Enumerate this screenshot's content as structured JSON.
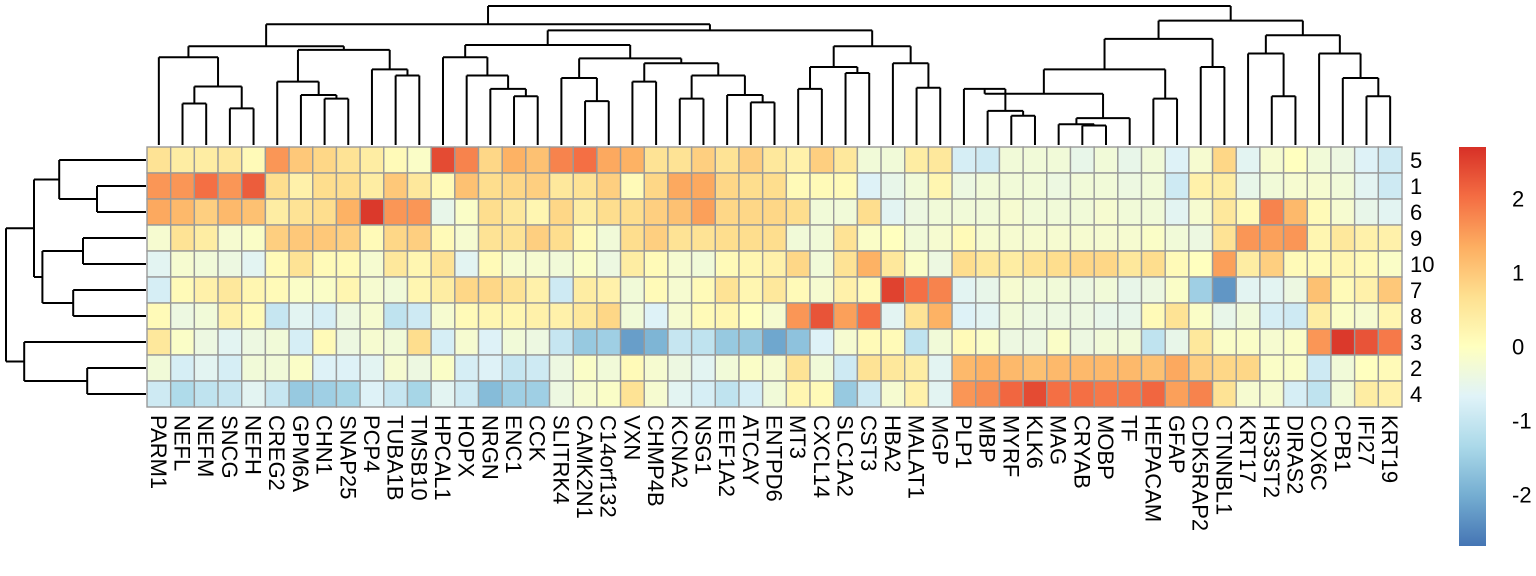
{
  "chart_data": {
    "type": "heatmap",
    "title": "",
    "xlabel": "",
    "ylabel": "",
    "rows": [
      "5",
      "1",
      "6",
      "9",
      "10",
      "7",
      "8",
      "3",
      "2",
      "4"
    ],
    "columns": [
      "PARM1",
      "NEFL",
      "NEFM",
      "SNCG",
      "NEFH",
      "CREG2",
      "GPM6A",
      "CHN1",
      "SNAP25",
      "PCP4",
      "TUBA1B",
      "TMSB10",
      "HPCAL1",
      "HOPX",
      "NRGN",
      "ENC1",
      "CCK",
      "SLITRK4",
      "CAMK2N1",
      "C14orf132",
      "VXN",
      "CHMP4B",
      "KCNA2",
      "NSG1",
      "EEF1A2",
      "ATCAY",
      "ENTPD6",
      "MT3",
      "CXCL14",
      "SLC1A2",
      "CST3",
      "HBA2",
      "MALAT1",
      "MGP",
      "PLP1",
      "MBP",
      "MYRF",
      "KLK6",
      "MAG",
      "CRYAB",
      "MOBP",
      "TF",
      "HEPACAM",
      "GFAP",
      "CDK5RAP2",
      "CTNNBL1",
      "KRT17",
      "HS3ST2",
      "DIRAS2",
      "COX6C",
      "CPB1",
      "IFI27",
      "KRT19"
    ],
    "values": [
      [
        0.6,
        0.4,
        0.4,
        0.5,
        0.1,
        1.6,
        1.0,
        0.8,
        0.6,
        0.4,
        0.1,
        -0.1,
        2.4,
        1.8,
        0.8,
        1.3,
        1.1,
        1.8,
        2.0,
        1.4,
        1.3,
        0.6,
        0.6,
        0.9,
        0.6,
        0.9,
        0.5,
        0.3,
        0.9,
        0.5,
        -0.3,
        -0.3,
        0.4,
        0.5,
        -0.8,
        -0.9,
        -0.3,
        -0.3,
        -0.3,
        -0.5,
        -0.3,
        -0.5,
        -0.3,
        -0.7,
        -0.2,
        0.8,
        -0.6,
        -0.2,
        0.0,
        -0.3,
        -0.4,
        -0.7,
        -0.9
      ],
      [
        1.6,
        1.6,
        2.0,
        1.6,
        2.2,
        0.7,
        0.3,
        0.7,
        0.7,
        0.4,
        1.0,
        0.5,
        0.1,
        1.1,
        0.7,
        0.8,
        0.9,
        0.5,
        0.6,
        0.9,
        0.1,
        0.8,
        1.4,
        1.4,
        0.8,
        0.7,
        0.7,
        0.1,
        0.1,
        0.1,
        -0.7,
        -0.5,
        -0.3,
        0.2,
        -0.4,
        -0.3,
        -0.3,
        -0.3,
        -0.4,
        -0.3,
        -0.3,
        -0.4,
        -0.3,
        -0.9,
        0.3,
        0.4,
        -0.5,
        -0.3,
        -0.2,
        -0.2,
        -0.3,
        -0.6,
        -0.9
      ],
      [
        1.4,
        1.2,
        0.9,
        1.2,
        1.1,
        0.4,
        0.6,
        0.7,
        1.3,
        2.6,
        1.6,
        1.6,
        -0.5,
        -0.1,
        0.7,
        0.5,
        0.2,
        0.8,
        0.4,
        0.7,
        0.7,
        0.9,
        1.1,
        1.5,
        0.8,
        0.8,
        0.8,
        0.7,
        -0.3,
        -0.3,
        0.7,
        -0.6,
        -0.4,
        -0.3,
        -0.3,
        -0.3,
        -0.2,
        -0.3,
        -0.3,
        -0.3,
        -0.2,
        -0.3,
        -0.3,
        -0.6,
        -0.2,
        0.5,
        0.1,
        1.8,
        1.2,
        0.1,
        -0.2,
        -0.5,
        -0.6
      ],
      [
        -0.2,
        0.6,
        0.4,
        -0.2,
        -0.1,
        0.9,
        1.0,
        1.0,
        0.9,
        0.1,
        0.8,
        0.9,
        0.1,
        -0.2,
        0.6,
        0.6,
        0.9,
        0.7,
        0.1,
        -0.3,
        0.7,
        0.9,
        0.6,
        0.6,
        0.7,
        0.7,
        0.7,
        -0.3,
        -0.3,
        0.6,
        -0.1,
        0.0,
        -0.3,
        -0.2,
        0.1,
        -0.2,
        -0.2,
        -0.2,
        -0.2,
        -0.2,
        -0.2,
        -0.2,
        -0.1,
        -0.3,
        -0.4,
        0.6,
        1.6,
        1.5,
        1.6,
        0.2,
        0.5,
        0.3,
        0.3
      ],
      [
        -0.6,
        -0.2,
        -0.3,
        -0.4,
        -0.6,
        0.1,
        0.6,
        0.1,
        0.1,
        -0.2,
        0.5,
        0.2,
        0.6,
        -0.6,
        0.1,
        -0.2,
        -0.2,
        -0.3,
        -0.1,
        -0.4,
        0.4,
        0.1,
        -0.2,
        -0.3,
        0.1,
        0.2,
        0.3,
        0.8,
        -0.3,
        0.6,
        1.3,
        0.5,
        -0.1,
        -0.4,
        0.7,
        0.5,
        0.4,
        0.6,
        0.7,
        0.8,
        0.8,
        0.5,
        0.7,
        0.1,
        0.0,
        1.5,
        0.4,
        0.9,
        0.1,
        0.1,
        0.2,
        0.1,
        -0.1
      ],
      [
        -0.8,
        0.1,
        0.3,
        0.5,
        0.2,
        0.1,
        -0.1,
        -0.1,
        0.2,
        -0.2,
        -0.3,
        0.2,
        0.4,
        0.8,
        0.8,
        0.6,
        0.3,
        -0.9,
        0.4,
        0.3,
        -0.3,
        0.1,
        -0.2,
        0.1,
        0.6,
        0.2,
        0.5,
        0.1,
        -0.2,
        0.3,
        0.1,
        2.5,
        2.0,
        1.8,
        -0.6,
        -0.5,
        -0.2,
        -0.3,
        -0.3,
        -0.4,
        -0.3,
        -0.5,
        -0.4,
        -0.1,
        -1.5,
        -2.3,
        -0.6,
        -0.6,
        -0.4,
        1.1,
        0.1,
        0.3,
        1.0
      ],
      [
        0.1,
        -0.4,
        -0.3,
        0.3,
        0.1,
        -1.0,
        -0.6,
        -0.8,
        -0.4,
        -0.2,
        -1.1,
        -0.9,
        -0.2,
        0.1,
        0.2,
        0.2,
        0.3,
        0.3,
        0.5,
        0.8,
        -0.3,
        -0.7,
        -0.2,
        0.1,
        0.2,
        0.0,
        -0.2,
        1.6,
        2.3,
        1.5,
        2.0,
        -0.6,
        0.6,
        1.3,
        -0.7,
        -0.6,
        -0.3,
        -0.4,
        -0.4,
        -0.4,
        -0.5,
        -0.5,
        0.1,
        0.6,
        -0.1,
        -0.5,
        -0.3,
        -0.8,
        -0.9,
        0.4,
        -0.1,
        -0.2,
        0.2
      ],
      [
        0.5,
        -0.1,
        -0.4,
        -0.6,
        -0.4,
        -0.3,
        -0.8,
        0.1,
        -0.4,
        -0.2,
        -0.3,
        0.7,
        -0.8,
        -0.2,
        -0.7,
        -0.3,
        -0.4,
        -1.0,
        -1.6,
        -1.5,
        -2.2,
        -1.9,
        -1.0,
        -1.1,
        -1.6,
        -1.6,
        -2.1,
        -1.7,
        -0.7,
        -0.2,
        0.1,
        0.1,
        -1.1,
        -0.3,
        0.1,
        -0.1,
        -0.4,
        -0.4,
        -0.1,
        -0.4,
        -0.3,
        -0.3,
        -1.1,
        -0.5,
        0.5,
        -0.1,
        -0.1,
        -0.2,
        -0.1,
        1.6,
        2.6,
        2.3,
        1.9
      ],
      [
        -0.3,
        -0.8,
        -0.6,
        -0.8,
        -0.3,
        -0.3,
        -0.1,
        -0.7,
        -0.7,
        -0.6,
        -0.2,
        -0.4,
        -0.1,
        -0.8,
        -0.7,
        -1.0,
        -0.9,
        -0.4,
        -0.1,
        -0.3,
        0.1,
        -0.2,
        -0.4,
        -0.6,
        -0.3,
        -0.1,
        -0.2,
        0.6,
        -0.3,
        -0.9,
        0.6,
        0.5,
        0.4,
        -0.6,
        1.2,
        1.3,
        1.2,
        1.1,
        1.2,
        1.2,
        1.2,
        1.2,
        1.1,
        1.4,
        0.9,
        0.8,
        0.8,
        -0.1,
        -0.1,
        -0.9,
        -0.3,
        0.0,
        0.1
      ],
      [
        -0.9,
        -1.3,
        -1.1,
        -1.0,
        -0.6,
        -1.0,
        -1.6,
        -1.5,
        -1.4,
        -0.7,
        -1.0,
        -1.4,
        -0.6,
        -0.9,
        -1.8,
        -1.5,
        -1.5,
        -0.4,
        -0.2,
        -0.1,
        0.6,
        -0.2,
        -0.6,
        -0.8,
        -1.1,
        -0.8,
        -0.3,
        0.2,
        0.1,
        -1.6,
        -0.9,
        -0.2,
        0.3,
        -0.6,
        1.6,
        1.7,
        2.1,
        2.4,
        2.0,
        2.0,
        1.9,
        1.9,
        2.1,
        1.5,
        1.8,
        0.6,
        -0.2,
        -0.2,
        -0.8,
        -1.1,
        -0.3,
        0.4,
        0.3
      ]
    ],
    "color_scale": {
      "range": [
        -2.7,
        2.7
      ],
      "ticks": [
        -2,
        -1,
        0,
        1,
        2
      ],
      "colors": [
        "#4575b4",
        "#74add1",
        "#abd9e9",
        "#e0f3f8",
        "#ffffbf",
        "#fee090",
        "#fdae61",
        "#f46d43",
        "#d73027"
      ]
    },
    "row_dendrogram": "((5,(1,6)),((9,10),(7,8))),(3,(2,4))",
    "column_dendrogram": "present",
    "legend_position": "right"
  }
}
